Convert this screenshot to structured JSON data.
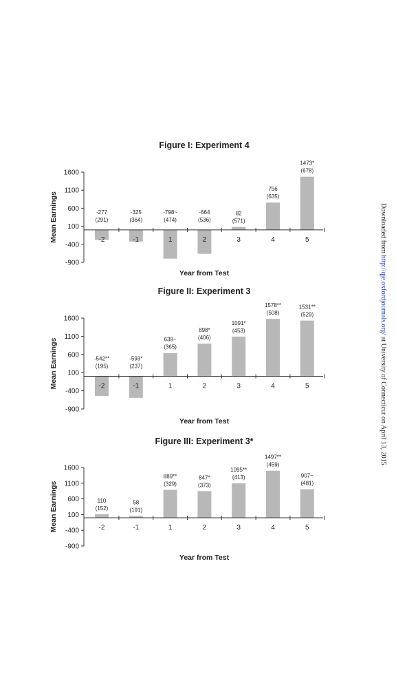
{
  "chart_data": [
    {
      "type": "bar",
      "title": "Figure I: Experiment 4",
      "x_label": "Year from Test",
      "y_label": "Mean Earnings",
      "categories": [
        "-2",
        "-1",
        "1",
        "2",
        "3",
        "4",
        "5"
      ],
      "values": [
        -277,
        -325,
        -798,
        -664,
        82,
        756,
        1473
      ],
      "value_labels": [
        "-277",
        "-325",
        "-798~",
        "-664",
        "82",
        "756",
        "1473*"
      ],
      "se_labels": [
        "(291)",
        "(364)",
        "(474)",
        "(536)",
        "(571)",
        "(635)",
        "(678)"
      ],
      "color": "#b8b8b8",
      "ylim": [
        -900,
        1600
      ],
      "yticks": [
        1600,
        1100,
        600,
        100,
        -400,
        -900
      ]
    },
    {
      "type": "bar",
      "title": "Figure II: Experiment 3",
      "x_label": "Year from Test",
      "y_label": "Mean Earnings",
      "categories": [
        "-2",
        "-1",
        "1",
        "2",
        "3",
        "4",
        "5"
      ],
      "values": [
        -542,
        -593,
        639,
        898,
        1091,
        1578,
        1531
      ],
      "value_labels": [
        "-542**",
        "-593*",
        "639~",
        "898*",
        "1091*",
        "1578**",
        "1531**"
      ],
      "se_labels": [
        "(195)",
        "(237)",
        "(365)",
        "(406)",
        "(453)",
        "(508)",
        "(529)"
      ],
      "color": "#b8b8b8",
      "ylim": [
        -900,
        1600
      ],
      "yticks": [
        1600,
        1100,
        600,
        100,
        -400,
        -900
      ]
    },
    {
      "type": "bar",
      "title": "Figure III: Experiment 3*",
      "x_label": "Year from Test",
      "y_label": "Mean Earnings",
      "categories": [
        "-2",
        "-1",
        "1",
        "2",
        "3",
        "4",
        "5"
      ],
      "values": [
        110,
        58,
        889,
        847,
        1095,
        1497,
        907
      ],
      "value_labels": [
        "110",
        "58",
        "889**",
        "847*",
        "1095**",
        "1497**",
        "907~"
      ],
      "se_labels": [
        "(152)",
        "(191)",
        "(329)",
        "(373)",
        "(413)",
        "(459)",
        "(481)"
      ],
      "color": "#b8b8b8",
      "ylim": [
        -900,
        1600
      ],
      "yticks": [
        1600,
        1100,
        600,
        100,
        -400,
        -900
      ]
    }
  ],
  "watermark": {
    "prefix": "Downloaded from ",
    "link": "http://qje.oxfordjournals.org/",
    "suffix": " at University of Connecticut on April 13, 2015"
  }
}
